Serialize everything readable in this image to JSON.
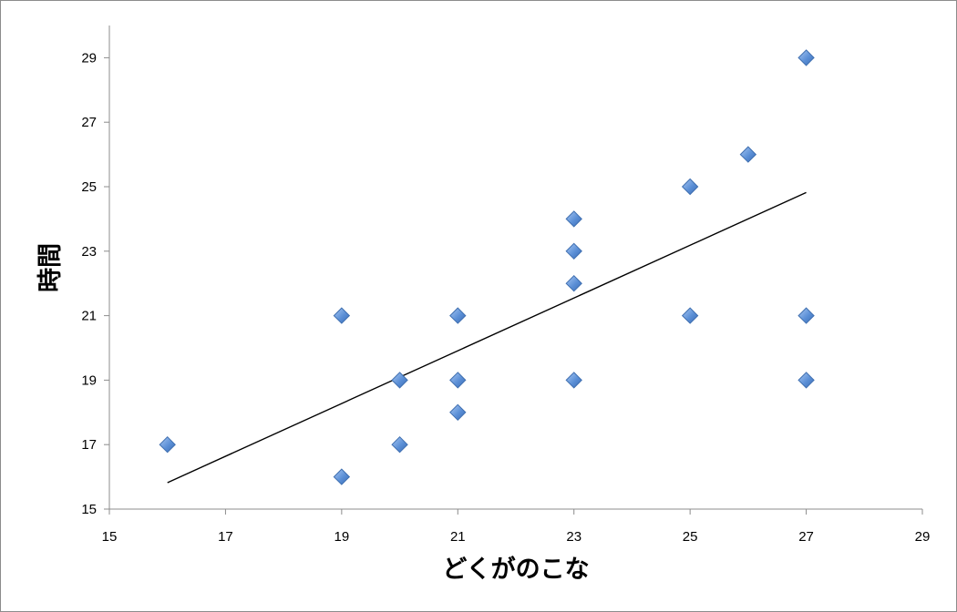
{
  "chart_data": {
    "type": "scatter",
    "xlabel": "どくがのこな",
    "ylabel": "時間",
    "xlim": [
      15,
      29
    ],
    "ylim": [
      15,
      30
    ],
    "xticks": [
      15,
      17,
      19,
      21,
      23,
      25,
      27,
      29
    ],
    "yticks": [
      15,
      17,
      19,
      21,
      23,
      25,
      27,
      29
    ],
    "grid": false,
    "legend": "none",
    "marker_color": "#5b8fd6",
    "series": [
      {
        "points": [
          [
            16,
            17
          ],
          [
            19,
            21
          ],
          [
            19,
            16
          ],
          [
            20,
            19
          ],
          [
            20,
            17
          ],
          [
            21,
            21
          ],
          [
            21,
            19
          ],
          [
            21,
            18
          ],
          [
            23,
            24
          ],
          [
            23,
            23
          ],
          [
            23,
            22
          ],
          [
            23,
            19
          ],
          [
            25,
            25
          ],
          [
            25,
            21
          ],
          [
            26,
            26
          ],
          [
            27,
            29
          ],
          [
            27,
            21
          ],
          [
            27,
            19
          ]
        ]
      }
    ],
    "trendline": {
      "type": "linear",
      "x": [
        16,
        27
      ],
      "y": [
        15.82,
        24.82
      ],
      "color": "#000000"
    }
  }
}
